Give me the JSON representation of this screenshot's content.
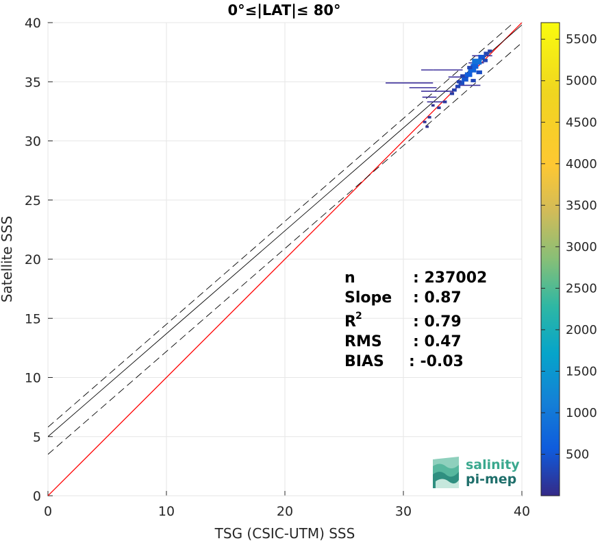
{
  "chart_data": {
    "type": "scatter",
    "title": "0°≤|LAT|≤ 80°",
    "xlabel": "TSG (CSIC-UTM) SSS",
    "ylabel": "Satellite SSS",
    "xlim": [
      0,
      40
    ],
    "ylim": [
      0,
      40
    ],
    "xticks": [
      "0",
      "10",
      "20",
      "30",
      "40"
    ],
    "yticks": [
      "0",
      "5",
      "10",
      "15",
      "20",
      "25",
      "30",
      "35",
      "40"
    ],
    "grid": true,
    "lines": [
      {
        "name": "1:1",
        "style": "solid",
        "color": "#ff0000",
        "intercept": 0,
        "slope": 1
      },
      {
        "name": "fit",
        "style": "solid",
        "color": "#000000",
        "intercept": 5.0,
        "slope": 0.87
      },
      {
        "name": "fit-upper",
        "style": "dashed",
        "color": "#000000",
        "intercept": 5.8,
        "slope": 0.87
      },
      {
        "name": "fit-lower",
        "style": "dashed",
        "color": "#000000",
        "intercept": 3.5,
        "slope": 0.87
      }
    ],
    "density_points": [
      {
        "x": 36.2,
        "y": 36.7,
        "count": 900
      },
      {
        "x": 35.8,
        "y": 36.0,
        "count": 700
      },
      {
        "x": 35.5,
        "y": 35.6,
        "count": 600
      },
      {
        "x": 35.2,
        "y": 35.2,
        "count": 500
      },
      {
        "x": 34.9,
        "y": 34.9,
        "count": 400
      },
      {
        "x": 34.6,
        "y": 34.6,
        "count": 300
      },
      {
        "x": 36.6,
        "y": 37.1,
        "count": 500
      },
      {
        "x": 37.0,
        "y": 37.4,
        "count": 300
      },
      {
        "x": 34.3,
        "y": 34.3,
        "count": 250
      },
      {
        "x": 36.4,
        "y": 35.8,
        "count": 400
      },
      {
        "x": 35.9,
        "y": 35.1,
        "count": 300
      },
      {
        "x": 36.0,
        "y": 36.3,
        "count": 650
      },
      {
        "x": 35.6,
        "y": 36.2,
        "count": 300
      },
      {
        "x": 33.5,
        "y": 33.3,
        "count": 150
      },
      {
        "x": 33.0,
        "y": 32.8,
        "count": 120
      },
      {
        "x": 32.2,
        "y": 32.0,
        "count": 100
      },
      {
        "x": 31.8,
        "y": 31.6,
        "count": 80
      },
      {
        "x": 32.0,
        "y": 31.2,
        "count": 60
      },
      {
        "x": 32.5,
        "y": 33.0,
        "count": 60
      },
      {
        "x": 34.1,
        "y": 34.0,
        "count": 200
      },
      {
        "x": 37.3,
        "y": 37.6,
        "count": 200
      },
      {
        "x": 36.9,
        "y": 36.8,
        "count": 300
      },
      {
        "x": 35.0,
        "y": 35.5,
        "count": 250
      },
      {
        "x": 34.7,
        "y": 35.0,
        "count": 250
      }
    ],
    "spread_segments": [
      {
        "x1": 28.5,
        "x2": 32.5,
        "y": 34.9
      },
      {
        "x1": 30.5,
        "x2": 32.8,
        "y": 34.5
      },
      {
        "x1": 31.5,
        "x2": 33.8,
        "y": 34.2
      },
      {
        "x1": 32.5,
        "x2": 35.0,
        "y": 36.0
      },
      {
        "x1": 31.5,
        "x2": 32.5,
        "y": 36.0
      },
      {
        "x1": 32.0,
        "x2": 33.5,
        "y": 33.3
      },
      {
        "x1": 33.8,
        "x2": 35.5,
        "y": 35.4
      },
      {
        "x1": 33.5,
        "x2": 34.2,
        "y": 34.2
      },
      {
        "x1": 35.8,
        "x2": 37.5,
        "y": 37.2
      },
      {
        "x1": 35.5,
        "x2": 36.8,
        "y": 36.6
      },
      {
        "x1": 31.6,
        "x2": 32.8,
        "y": 33.7
      },
      {
        "x1": 34.5,
        "x2": 36.5,
        "y": 34.7
      }
    ],
    "colorbar": {
      "min": 0,
      "max": 5700,
      "ticks": [
        "500",
        "1000",
        "1500",
        "2000",
        "2500",
        "3000",
        "3500",
        "4000",
        "4500",
        "5000",
        "5500"
      ],
      "colormap": "parula"
    },
    "stats": {
      "n_label": "n",
      "n_value": ": 237002",
      "slope_label": "Slope",
      "slope_value": ": 0.87",
      "r2_label": "R",
      "r2_sup": "2",
      "r2_value": ": 0.79",
      "rms_label": "RMS",
      "rms_value": ": 0.47",
      "bias_label": "BIAS",
      "bias_value": ": -0.03"
    }
  },
  "logo": {
    "line1": "salinity",
    "line2": "pi-mep",
    "color1": "#3aa88e",
    "color2": "#1f6f6b"
  }
}
